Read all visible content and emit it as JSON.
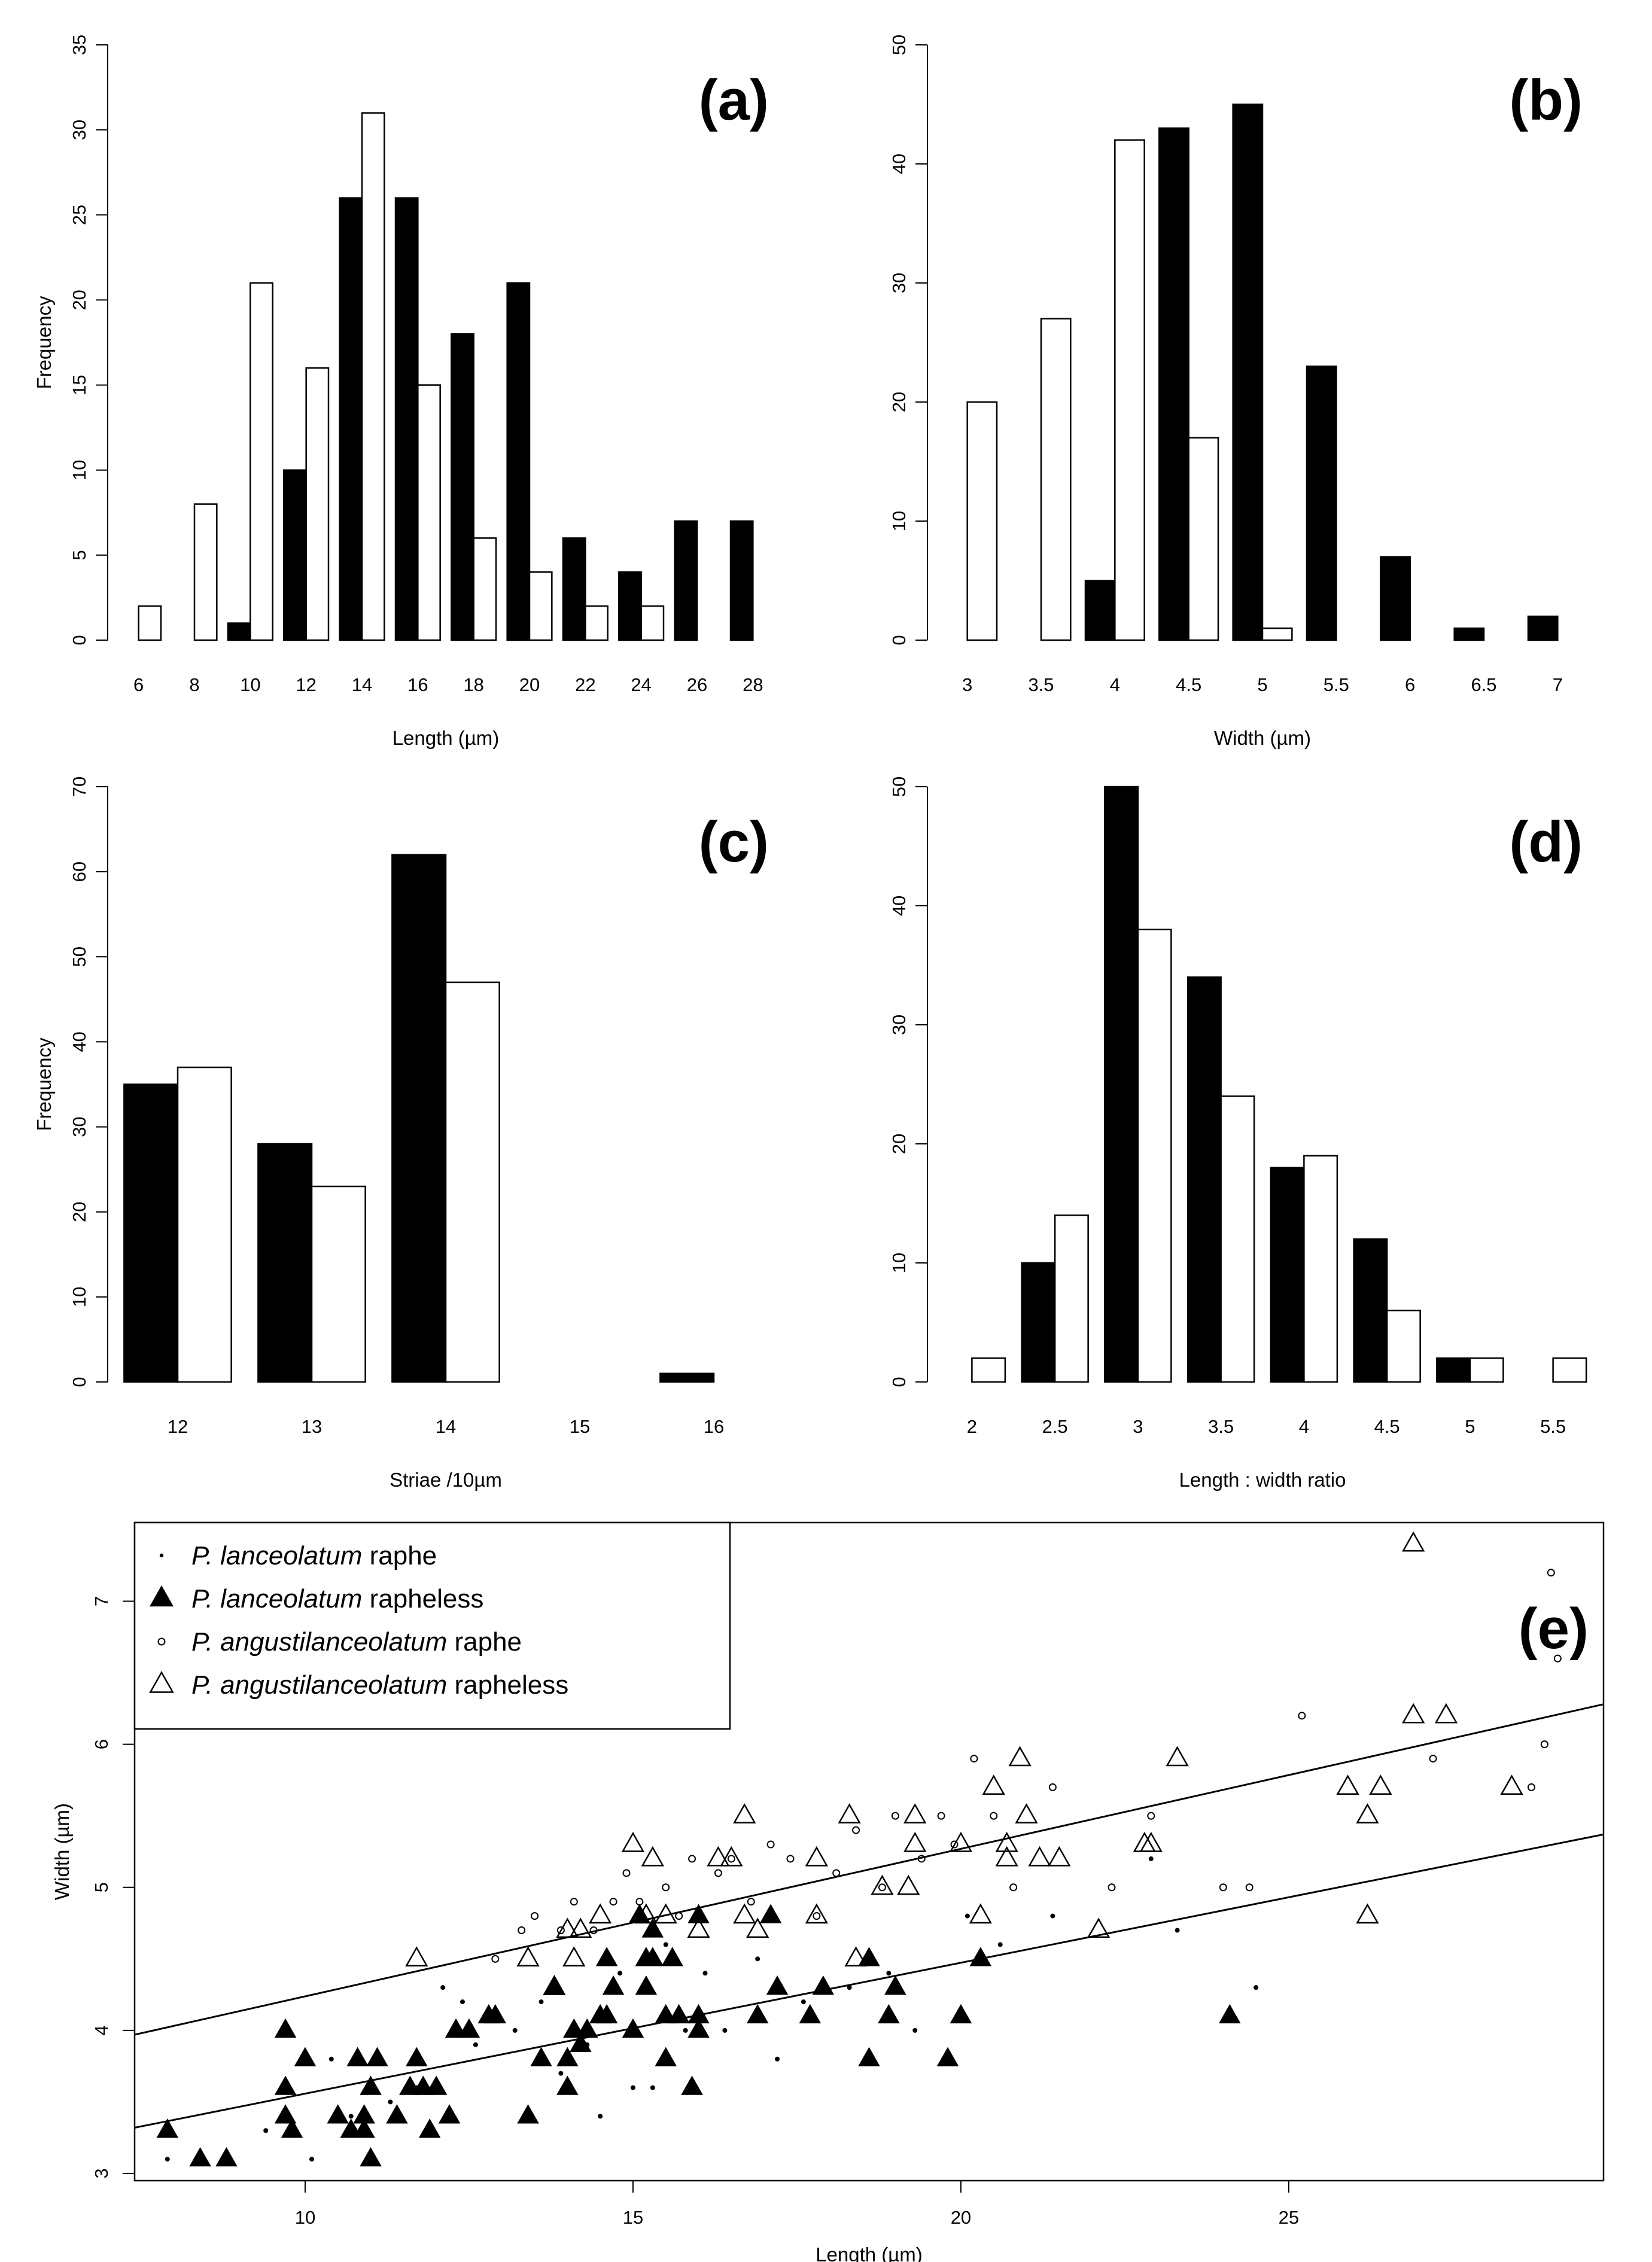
{
  "chart_data": [
    {
      "id": "a",
      "type": "bar",
      "panel_label": "(a)",
      "xlabel": "Length (µm)",
      "ylabel": "Frequency",
      "ylim": [
        0,
        35
      ],
      "yticks": [
        0,
        5,
        10,
        15,
        20,
        25,
        30,
        35
      ],
      "categories": [
        "6",
        "8",
        "10",
        "12",
        "14",
        "16",
        "18",
        "20",
        "22",
        "24",
        "26",
        "28"
      ],
      "series": [
        {
          "name": "P. lanceolatum",
          "color": "#000000",
          "values": [
            0,
            0,
            1,
            10,
            26,
            26,
            18,
            21,
            6,
            4,
            7,
            7
          ]
        },
        {
          "name": "P. angustilanceolatum",
          "color": "#ffffff",
          "values": [
            2,
            8,
            21,
            16,
            31,
            15,
            6,
            4,
            2,
            2,
            0,
            0
          ]
        }
      ]
    },
    {
      "id": "b",
      "type": "bar",
      "panel_label": "(b)",
      "xlabel": "Width (µm)",
      "ylabel": "",
      "ylim": [
        0,
        50
      ],
      "yticks": [
        0,
        10,
        20,
        30,
        40,
        50
      ],
      "categories": [
        "3",
        "3.5",
        "4",
        "4.5",
        "5",
        "5.5",
        "6",
        "6.5",
        "7"
      ],
      "series": [
        {
          "name": "P. lanceolatum",
          "color": "#000000",
          "values": [
            0,
            0,
            5,
            43,
            45,
            23,
            7,
            1,
            2
          ]
        },
        {
          "name": "P. angustilanceolatum",
          "color": "#ffffff",
          "values": [
            20,
            27,
            42,
            17,
            1,
            0,
            0,
            0,
            0
          ]
        }
      ]
    },
    {
      "id": "c",
      "type": "bar",
      "panel_label": "(c)",
      "xlabel": "Striae /10µm",
      "ylabel": "Frequency",
      "ylim": [
        0,
        70
      ],
      "yticks": [
        0,
        10,
        20,
        30,
        40,
        50,
        60,
        70
      ],
      "categories": [
        "12",
        "13",
        "14",
        "15",
        "16"
      ],
      "series": [
        {
          "name": "P. lanceolatum",
          "color": "#000000",
          "values": [
            35,
            28,
            62,
            0,
            1
          ]
        },
        {
          "name": "P. angustilanceolatum",
          "color": "#ffffff",
          "values": [
            37,
            23,
            47,
            0,
            0
          ]
        }
      ]
    },
    {
      "id": "d",
      "type": "bar",
      "panel_label": "(d)",
      "xlabel": "Length : width ratio",
      "ylabel": "",
      "ylim": [
        0,
        50
      ],
      "yticks": [
        0,
        10,
        20,
        30,
        40,
        50
      ],
      "categories": [
        "2",
        "2.5",
        "3",
        "3.5",
        "4",
        "4.5",
        "5",
        "5.5"
      ],
      "series": [
        {
          "name": "P. lanceolatum",
          "color": "#000000",
          "values": [
            0,
            10,
            50,
            34,
            18,
            12,
            2,
            0
          ]
        },
        {
          "name": "P. angustilanceolatum",
          "color": "#ffffff",
          "values": [
            2,
            14,
            38,
            24,
            19,
            6,
            2,
            2
          ]
        }
      ]
    },
    {
      "id": "e",
      "type": "scatter",
      "panel_label": "(e)",
      "xlabel": "Length (µm)",
      "ylabel": "Width (µm)",
      "xlim": [
        7.4,
        29.8
      ],
      "ylim": [
        2.95,
        7.55
      ],
      "xticks": [
        10,
        15,
        20,
        25
      ],
      "yticks": [
        3,
        4,
        5,
        6,
        7
      ],
      "legend_position": "top-left",
      "legend": [
        {
          "marker": "dot",
          "italic": "P. lanceolatum",
          "plain": " raphe"
        },
        {
          "marker": "filled-triangle",
          "italic": "P. lanceolatum",
          "plain": " rapheless"
        },
        {
          "marker": "open-circle",
          "italic": "P. angustilanceolatum",
          "plain": " raphe"
        },
        {
          "marker": "open-triangle",
          "italic": "P. angustilanceolatum",
          "plain": " rapheless"
        }
      ],
      "regression_lines": [
        {
          "name": "P. angustilanceolatum fit",
          "x": [
            7.4,
            29.8
          ],
          "y": [
            3.97,
            6.28
          ]
        },
        {
          "name": "P. lanceolatum fit",
          "x": [
            7.4,
            29.8
          ],
          "y": [
            3.32,
            5.37
          ]
        }
      ],
      "series": [
        {
          "name": "P. lanceolatum raphe",
          "marker": "dot",
          "points": [
            [
              7.9,
              3.1
            ],
            [
              9.4,
              3.3
            ],
            [
              10.1,
              3.1
            ],
            [
              10.4,
              3.8
            ],
            [
              10.7,
              3.4
            ],
            [
              11.3,
              3.5
            ],
            [
              11.7,
              3.6
            ],
            [
              12.1,
              4.3
            ],
            [
              12.4,
              4.2
            ],
            [
              12.6,
              3.9
            ],
            [
              12.9,
              4.1
            ],
            [
              13.2,
              4.0
            ],
            [
              13.6,
              4.2
            ],
            [
              13.9,
              3.7
            ],
            [
              14.3,
              3.9
            ],
            [
              14.5,
              3.4
            ],
            [
              14.8,
              4.4
            ],
            [
              15.0,
              3.6
            ],
            [
              15.3,
              3.6
            ],
            [
              15.5,
              4.6
            ],
            [
              15.8,
              4.0
            ],
            [
              16.1,
              4.4
            ],
            [
              16.4,
              4.0
            ],
            [
              16.9,
              4.5
            ],
            [
              17.2,
              3.8
            ],
            [
              17.6,
              4.2
            ],
            [
              18.3,
              4.3
            ],
            [
              18.9,
              4.4
            ],
            [
              19.3,
              4.0
            ],
            [
              20.1,
              4.8
            ],
            [
              20.6,
              4.6
            ],
            [
              21.4,
              4.8
            ],
            [
              22.9,
              5.2
            ],
            [
              23.3,
              4.7
            ],
            [
              24.5,
              4.3
            ]
          ]
        },
        {
          "name": "P. lanceolatum rapheless",
          "marker": "filled-triangle",
          "points": [
            [
              7.9,
              3.3
            ],
            [
              8.4,
              3.1
            ],
            [
              8.8,
              3.1
            ],
            [
              9.7,
              4.0
            ],
            [
              9.7,
              3.6
            ],
            [
              9.7,
              3.4
            ],
            [
              9.8,
              3.3
            ],
            [
              10.0,
              3.8
            ],
            [
              10.5,
              3.4
            ],
            [
              10.7,
              3.3
            ],
            [
              10.8,
              3.8
            ],
            [
              10.9,
              3.3
            ],
            [
              10.9,
              3.4
            ],
            [
              11.0,
              3.6
            ],
            [
              11.0,
              3.1
            ],
            [
              11.1,
              3.8
            ],
            [
              11.4,
              3.4
            ],
            [
              11.6,
              3.6
            ],
            [
              11.7,
              3.8
            ],
            [
              11.8,
              3.6
            ],
            [
              11.9,
              3.3
            ],
            [
              12.0,
              3.6
            ],
            [
              12.2,
              3.4
            ],
            [
              12.3,
              4.0
            ],
            [
              12.5,
              4.0
            ],
            [
              12.8,
              4.1
            ],
            [
              12.9,
              4.1
            ],
            [
              13.4,
              3.4
            ],
            [
              13.6,
              3.8
            ],
            [
              13.8,
              4.3
            ],
            [
              14.0,
              3.6
            ],
            [
              14.0,
              3.8
            ],
            [
              14.1,
              4.0
            ],
            [
              14.2,
              3.9
            ],
            [
              14.3,
              4.0
            ],
            [
              14.5,
              4.1
            ],
            [
              14.6,
              4.1
            ],
            [
              14.6,
              4.5
            ],
            [
              14.7,
              4.3
            ],
            [
              15.0,
              4.0
            ],
            [
              15.1,
              4.8
            ],
            [
              15.2,
              4.5
            ],
            [
              15.2,
              4.3
            ],
            [
              15.3,
              4.5
            ],
            [
              15.3,
              4.7
            ],
            [
              15.5,
              4.1
            ],
            [
              15.5,
              3.8
            ],
            [
              15.6,
              4.5
            ],
            [
              15.7,
              4.1
            ],
            [
              15.9,
              3.6
            ],
            [
              16.0,
              4.0
            ],
            [
              16.0,
              4.1
            ],
            [
              16.0,
              4.8
            ],
            [
              16.9,
              4.1
            ],
            [
              17.1,
              4.8
            ],
            [
              17.2,
              4.3
            ],
            [
              17.7,
              4.1
            ],
            [
              17.9,
              4.3
            ],
            [
              18.6,
              3.8
            ],
            [
              18.6,
              4.5
            ],
            [
              18.9,
              4.1
            ],
            [
              19.0,
              4.3
            ],
            [
              19.8,
              3.8
            ],
            [
              20.0,
              4.1
            ],
            [
              20.3,
              4.5
            ],
            [
              24.1,
              4.1
            ]
          ]
        },
        {
          "name": "P. angustilanceolatum raphe",
          "marker": "open-circle",
          "points": [
            [
              12.9,
              4.5
            ],
            [
              13.3,
              4.7
            ],
            [
              13.5,
              4.8
            ],
            [
              13.9,
              4.7
            ],
            [
              14.1,
              4.9
            ],
            [
              14.4,
              4.7
            ],
            [
              14.7,
              4.9
            ],
            [
              14.9,
              5.1
            ],
            [
              15.1,
              4.9
            ],
            [
              15.5,
              5.0
            ],
            [
              15.7,
              4.8
            ],
            [
              15.9,
              5.2
            ],
            [
              16.3,
              5.1
            ],
            [
              16.5,
              5.2
            ],
            [
              16.8,
              4.9
            ],
            [
              17.1,
              5.3
            ],
            [
              17.4,
              5.2
            ],
            [
              17.8,
              4.8
            ],
            [
              18.1,
              5.1
            ],
            [
              18.4,
              5.4
            ],
            [
              18.8,
              5.0
            ],
            [
              19.0,
              5.5
            ],
            [
              19.4,
              5.2
            ],
            [
              19.7,
              5.5
            ],
            [
              19.9,
              5.3
            ],
            [
              20.2,
              5.9
            ],
            [
              20.5,
              5.5
            ],
            [
              20.8,
              5.0
            ],
            [
              21.4,
              5.7
            ],
            [
              22.3,
              5.0
            ],
            [
              22.9,
              5.5
            ],
            [
              24.0,
              5.0
            ],
            [
              24.4,
              5.0
            ],
            [
              25.2,
              6.2
            ],
            [
              27.2,
              5.9
            ],
            [
              28.7,
              5.7
            ],
            [
              28.9,
              6.0
            ],
            [
              29.0,
              7.2
            ],
            [
              29.1,
              6.6
            ]
          ]
        },
        {
          "name": "P. angustilanceolatum rapheless",
          "marker": "open-triangle",
          "points": [
            [
              11.7,
              4.5
            ],
            [
              13.4,
              4.5
            ],
            [
              13.8,
              4.3
            ],
            [
              14.0,
              4.7
            ],
            [
              14.1,
              4.5
            ],
            [
              14.2,
              4.7
            ],
            [
              14.5,
              4.8
            ],
            [
              15.0,
              5.3
            ],
            [
              15.2,
              4.8
            ],
            [
              15.3,
              5.2
            ],
            [
              15.5,
              4.8
            ],
            [
              16.0,
              4.7
            ],
            [
              16.3,
              5.2
            ],
            [
              16.5,
              5.2
            ],
            [
              16.7,
              5.5
            ],
            [
              16.7,
              4.8
            ],
            [
              16.9,
              4.7
            ],
            [
              17.8,
              5.2
            ],
            [
              17.8,
              4.8
            ],
            [
              18.3,
              5.5
            ],
            [
              18.4,
              4.5
            ],
            [
              18.8,
              5.0
            ],
            [
              19.2,
              5.0
            ],
            [
              19.3,
              5.3
            ],
            [
              19.3,
              5.5
            ],
            [
              20.0,
              5.3
            ],
            [
              20.3,
              4.8
            ],
            [
              20.5,
              5.7
            ],
            [
              20.7,
              5.2
            ],
            [
              20.7,
              5.3
            ],
            [
              20.9,
              5.9
            ],
            [
              21.0,
              5.5
            ],
            [
              21.2,
              5.2
            ],
            [
              21.5,
              5.2
            ],
            [
              22.1,
              4.7
            ],
            [
              22.8,
              5.3
            ],
            [
              22.9,
              5.3
            ],
            [
              23.3,
              5.9
            ],
            [
              25.9,
              5.7
            ],
            [
              26.2,
              5.5
            ],
            [
              26.2,
              4.8
            ],
            [
              26.4,
              5.7
            ],
            [
              26.9,
              7.4
            ],
            [
              26.9,
              6.2
            ],
            [
              27.4,
              6.2
            ],
            [
              28.4,
              5.7
            ]
          ]
        }
      ]
    }
  ]
}
